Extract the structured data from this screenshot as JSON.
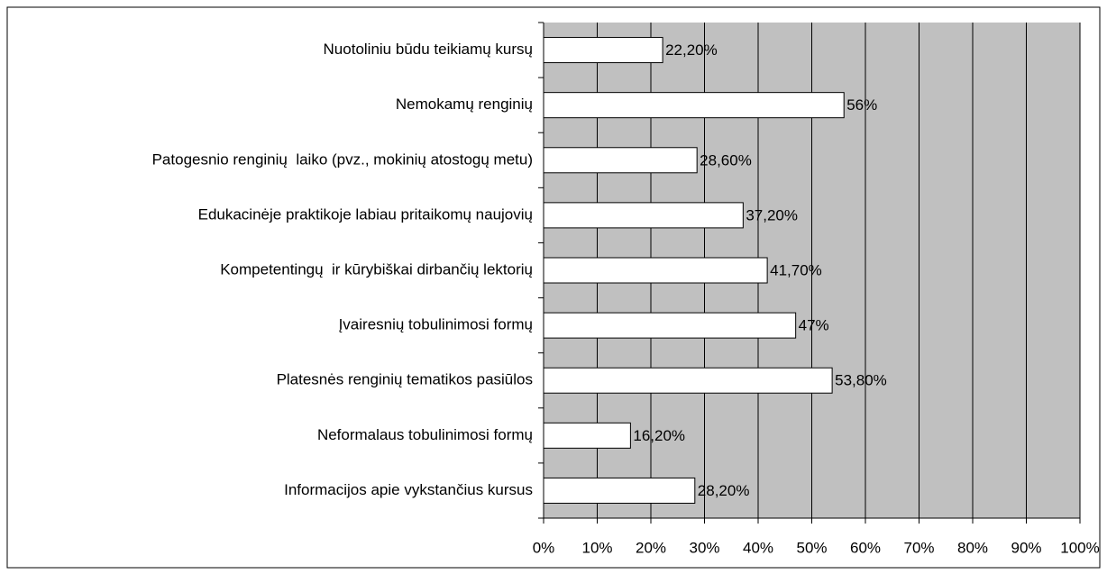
{
  "chart_data": {
    "type": "hbar",
    "categories": [
      "Nuotoliniu būdu teikiamų kursų",
      "Nemokamų renginių",
      "Patogesnio renginių  laiko (pvz., mokinių atostogų metu)",
      "Edukacinėje praktikoje labiau pritaikomų naujovių",
      "Kompetentingų  ir kūrybiškai dirbančių lektorių",
      "Įvairesnių tobulinimosi formų",
      "Platesnės renginių tematikos pasiūlos",
      "Neformalaus tobulinimosi formų",
      "Informacijos apie vykstančius kursus"
    ],
    "values": [
      22.2,
      56,
      28.6,
      37.2,
      41.7,
      47,
      53.8,
      16.2,
      28.2
    ],
    "value_labels": [
      "22,20%",
      "56%",
      "28,60%",
      "37,20%",
      "41,70%",
      "47%",
      "53,80%",
      "16,20%",
      "28,20%"
    ],
    "color": "#ffffff",
    "plot_background": "#c0c0c0",
    "xlim": [
      0,
      100
    ],
    "xticks": [
      {
        "value": 0,
        "label": "0%"
      },
      {
        "value": 10,
        "label": "10%"
      },
      {
        "value": 20,
        "label": "20%"
      },
      {
        "value": 30,
        "label": "30%"
      },
      {
        "value": 40,
        "label": "40%"
      },
      {
        "value": 50,
        "label": "50%"
      },
      {
        "value": 60,
        "label": "60%"
      },
      {
        "value": 70,
        "label": "70%"
      },
      {
        "value": 80,
        "label": "80%"
      },
      {
        "value": 90,
        "label": "90%"
      },
      {
        "value": 100,
        "label": "100%"
      }
    ],
    "grid": true
  }
}
